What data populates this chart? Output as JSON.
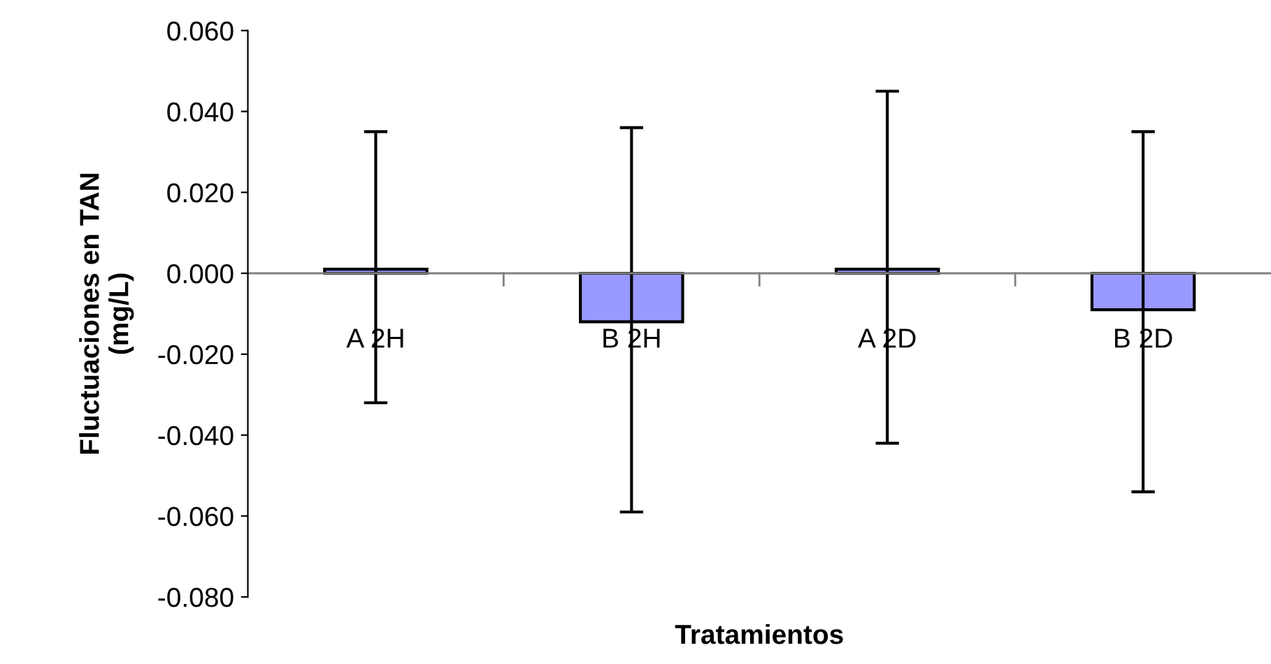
{
  "chart_data": {
    "type": "bar",
    "xlabel": "Tratamientos",
    "ylabel": "Fluctuaciones en TAN\n(mg/L)",
    "categories": [
      "A 2H",
      "B 2H",
      "A 2D",
      "B 2D"
    ],
    "values": [
      0.001,
      -0.012,
      0.001,
      -0.009
    ],
    "color": "#9999ff",
    "errors": [
      [
        -0.032,
        0.035
      ],
      [
        -0.059,
        0.036
      ],
      [
        -0.042,
        0.045
      ],
      [
        -0.054,
        0.035
      ]
    ],
    "ylim": [
      -0.08,
      0.06
    ],
    "yticks": [
      {
        "value": -0.08,
        "label": "-0.080"
      },
      {
        "value": -0.06,
        "label": "-0.060"
      },
      {
        "value": -0.04,
        "label": "-0.040"
      },
      {
        "value": -0.02,
        "label": "-0.020"
      },
      {
        "value": 0,
        "label": "0.000"
      },
      {
        "value": 0.02,
        "label": "0.020"
      },
      {
        "value": 0.04,
        "label": "0.040"
      },
      {
        "value": 0.06,
        "label": "0.060"
      }
    ],
    "grid": false,
    "legend": false
  }
}
